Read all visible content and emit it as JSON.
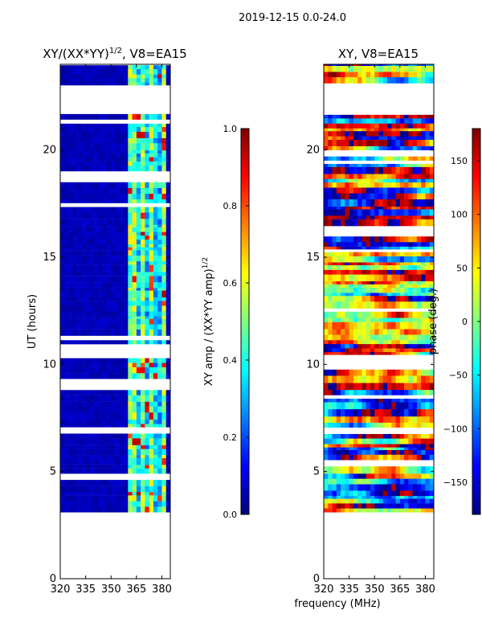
{
  "figure": {
    "suptitle": "2019-12-15 0.0-24.0",
    "xlabel": "frequency (MHz)"
  },
  "chart_data": [
    {
      "type": "heatmap",
      "title_main": "XY/(XX*YY)",
      "title_exp": "1/2",
      "title_rest": ", V8=EA15",
      "xlabel": "",
      "ylabel": "UT (hours)",
      "xlim": [
        320,
        385
      ],
      "ylim": [
        0,
        24
      ],
      "xticks": [
        "320",
        "335",
        "350",
        "365",
        "380"
      ],
      "xtick_values": [
        320,
        335,
        350,
        365,
        380
      ],
      "yticks": [
        "0",
        "5",
        "10",
        "15",
        "20"
      ],
      "ytick_values": [
        0,
        5,
        10,
        15,
        20
      ],
      "data_start_hour": 3.1,
      "data_gaps_hours": [
        [
          21.6,
          23.0
        ]
      ],
      "colorbar": {
        "label_main": "XY amp / (XX*YY amp)",
        "label_exp": "1/2",
        "range": [
          0.0,
          1.0
        ],
        "ticks": [
          "0.0",
          "0.2",
          "0.4",
          "0.6",
          "0.8",
          "1.0"
        ],
        "tick_values": [
          0.0,
          0.2,
          0.4,
          0.6,
          0.8,
          1.0
        ]
      }
    },
    {
      "type": "heatmap",
      "title": "XY, V8=EA15",
      "xlabel": "",
      "ylabel": "",
      "xlim": [
        320,
        385
      ],
      "ylim": [
        0,
        24
      ],
      "xticks": [
        "320",
        "335",
        "350",
        "365",
        "380"
      ],
      "xtick_values": [
        320,
        335,
        350,
        365,
        380
      ],
      "yticks": [
        "0",
        "5",
        "10",
        "15",
        "20"
      ],
      "ytick_values": [
        0,
        5,
        10,
        15,
        20
      ],
      "data_start_hour": 3.1,
      "data_gaps_hours": [
        [
          21.6,
          23.0
        ]
      ],
      "colorbar": {
        "label": "phase (deg.)",
        "range": [
          -180,
          180
        ],
        "ticks": [
          "−150",
          "−100",
          "−50",
          "0",
          "50",
          "100",
          "150"
        ],
        "tick_values": [
          -150,
          -100,
          -50,
          0,
          50,
          100,
          150
        ]
      }
    }
  ]
}
